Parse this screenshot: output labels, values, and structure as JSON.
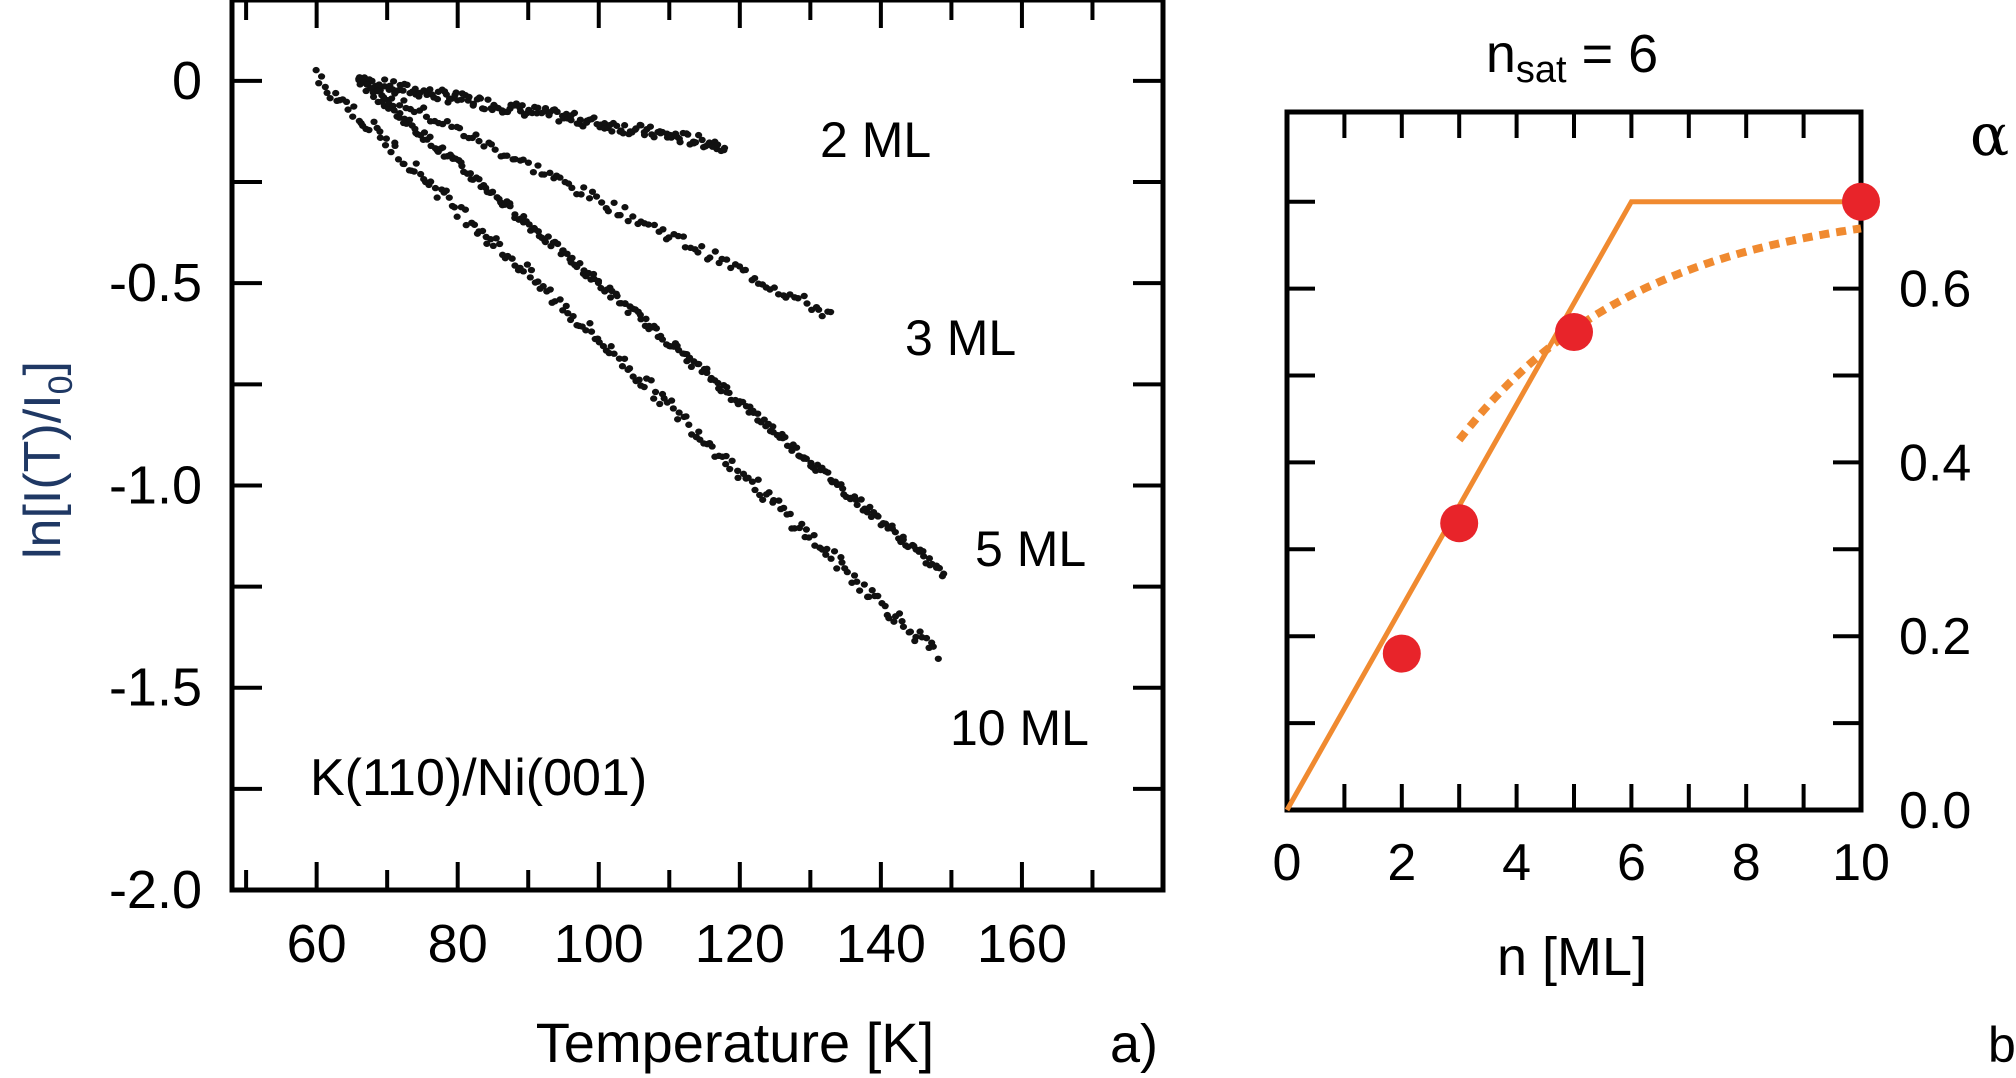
{
  "chart_data": [
    {
      "type": "scatter",
      "panel_label": "a)",
      "xlabel": "Temperature [K]",
      "ylabel": "ln[I(T)/I0]",
      "ylabel_main": "ln[I(T)/I",
      "ylabel_sub": "0",
      "ylabel_end": "]",
      "annotation": "K(110)/Ni(001)",
      "xlim": [
        48,
        180
      ],
      "ylim": [
        -2.0,
        0.2
      ],
      "x_ticks": [
        60,
        80,
        100,
        120,
        140,
        160
      ],
      "y_ticks": [
        0,
        -0.5,
        -1.0,
        -1.5,
        -2.0
      ],
      "y_tick_labels": [
        "0",
        "-0.5",
        "-1.0",
        "-1.5",
        "-2.0"
      ],
      "grid": false,
      "series": [
        {
          "name": "2 ML",
          "x_start": 66,
          "x_end": 118,
          "y_start": 0.0,
          "y_end": -0.16,
          "density": 1.0,
          "spread": 0.015
        },
        {
          "name": "3 ML",
          "x_start": 66,
          "x_end": 133,
          "y_start": 0.0,
          "y_end": -0.58,
          "density": 0.55,
          "spread": 0.015
        },
        {
          "name": "5 ML",
          "x_start": 66,
          "x_end": 149,
          "y_start": 0.0,
          "y_end": -1.22,
          "density": 1.0,
          "spread": 0.012
        },
        {
          "name": "10 ML",
          "x_start": 60,
          "x_end": 148,
          "y_start": 0.01,
          "y_end": -1.42,
          "density": 0.75,
          "spread": 0.02
        }
      ]
    },
    {
      "type": "line",
      "panel_label": "b)",
      "title_main": "n",
      "title_sub": "sat",
      "title_end": " = 6",
      "xlabel": "n [ML]",
      "ylabel": "α",
      "xlim": [
        0,
        10
      ],
      "ylim": [
        0,
        0.7
      ],
      "x_ticks": [
        0,
        2,
        4,
        6,
        8,
        10
      ],
      "y_ticks": [
        0.0,
        0.2,
        0.4,
        0.6
      ],
      "y_tick_labels": [
        "0.0",
        "0.2",
        "0.4",
        "0.6"
      ],
      "grid": false,
      "points": {
        "x": [
          2,
          3,
          5,
          10
        ],
        "y": [
          0.18,
          0.33,
          0.55,
          0.7
        ]
      },
      "linear_fit": {
        "x": [
          0,
          6,
          10
        ],
        "y": [
          0,
          0.7,
          0.7
        ]
      },
      "exp_fit": {
        "saturation": 0.7,
        "scale": 3.2
      },
      "colors": {
        "points": "#e8242a",
        "fit": "#f08a30"
      }
    }
  ]
}
